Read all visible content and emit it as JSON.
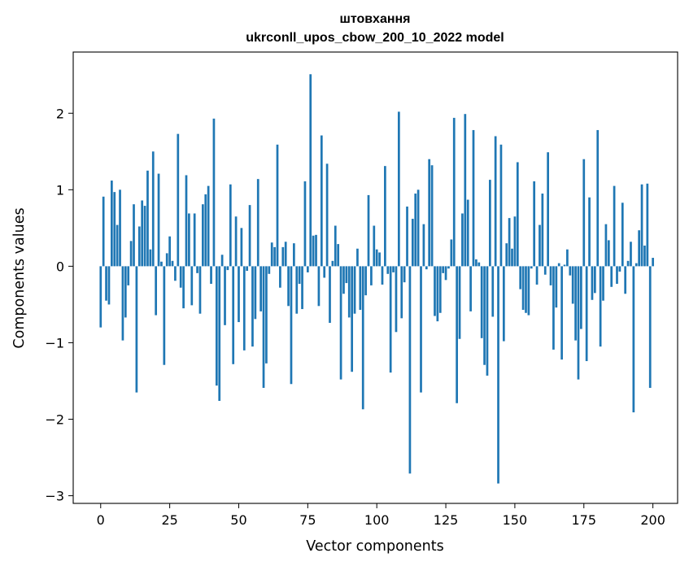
{
  "chart_data": {
    "type": "bar",
    "title": "штовхання",
    "subtitle": "ukrconll_upos_cbow_200_10_2022 model",
    "xlabel": "Vector components",
    "ylabel": "Components values",
    "xlim": [
      -9.95,
      208.95
    ],
    "ylim": [
      -3.1,
      2.8
    ],
    "x_ticks": [
      0,
      25,
      50,
      75,
      100,
      125,
      150,
      175,
      200
    ],
    "y_ticks": [
      -3,
      -2,
      -1,
      0,
      1,
      2
    ],
    "y_tick_labels": [
      "−3",
      "−2",
      "−1",
      "0",
      "1",
      "2"
    ],
    "grid": false,
    "bar_color": "#1f77b4",
    "values": [
      -0.8,
      0.91,
      -0.45,
      -0.5,
      1.12,
      0.97,
      0.54,
      1.0,
      -0.97,
      -0.67,
      -0.25,
      0.33,
      0.81,
      -1.65,
      0.52,
      0.86,
      0.79,
      1.25,
      0.22,
      1.5,
      -0.64,
      1.21,
      0.06,
      -1.29,
      0.17,
      0.39,
      0.07,
      -0.19,
      1.73,
      -0.28,
      -0.55,
      1.19,
      0.69,
      -0.51,
      0.69,
      -0.09,
      -0.62,
      0.81,
      0.94,
      1.05,
      -0.23,
      1.93,
      -1.56,
      -1.76,
      0.15,
      -0.77,
      -0.05,
      1.07,
      -1.28,
      0.65,
      -0.73,
      0.5,
      -1.1,
      -0.06,
      0.8,
      -1.05,
      -0.69,
      1.14,
      -0.59,
      -1.59,
      -1.27,
      -0.1,
      0.31,
      0.25,
      1.59,
      -0.28,
      0.25,
      0.32,
      -0.52,
      -1.54,
      0.3,
      -0.62,
      -0.23,
      -0.56,
      1.11,
      -0.08,
      2.51,
      0.4,
      0.41,
      -0.52,
      1.71,
      -0.15,
      1.34,
      -0.74,
      0.07,
      0.53,
      0.29,
      -1.48,
      -0.36,
      -0.22,
      -0.67,
      -1.38,
      -0.62,
      0.23,
      -0.57,
      -1.87,
      -0.38,
      0.93,
      -0.25,
      0.53,
      0.22,
      0.18,
      -0.24,
      1.31,
      -0.1,
      -1.39,
      -0.08,
      -0.86,
      2.02,
      -0.68,
      -0.21,
      0.78,
      -2.71,
      0.62,
      0.95,
      1.0,
      -1.65,
      0.55,
      -0.04,
      1.4,
      1.32,
      -0.65,
      -0.72,
      -0.61,
      -0.09,
      -0.18,
      -0.03,
      0.35,
      1.94,
      -1.79,
      -0.95,
      0.69,
      1.99,
      0.87,
      -0.59,
      1.78,
      0.09,
      0.05,
      -0.94,
      -1.29,
      -1.43,
      1.13,
      -0.66,
      1.7,
      -2.84,
      1.59,
      -0.98,
      0.3,
      0.63,
      0.23,
      0.65,
      1.36,
      -0.3,
      -0.57,
      -0.61,
      -0.64,
      -0.03,
      1.11,
      -0.24,
      0.54,
      0.95,
      -0.11,
      1.49,
      -0.25,
      -1.09,
      -0.54,
      0.04,
      -1.22,
      0.02,
      0.22,
      -0.12,
      -0.49,
      -0.97,
      -1.48,
      -0.82,
      1.4,
      -1.24,
      0.9,
      -0.44,
      -0.35,
      1.78,
      -1.05,
      -0.45,
      0.55,
      0.34,
      -0.27,
      1.05,
      -0.23,
      -0.07,
      0.83,
      -0.36,
      0.07,
      0.32,
      -1.91,
      0.04,
      0.47,
      1.07,
      0.27,
      1.08,
      -1.59,
      0.11
    ]
  }
}
